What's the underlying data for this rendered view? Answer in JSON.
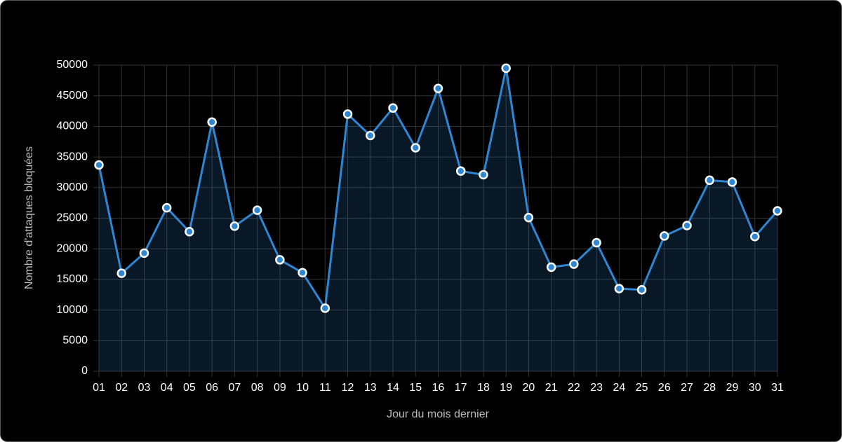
{
  "chart_data": {
    "type": "line",
    "x_label": "Jour du mois dernier",
    "y_label": "Nombre d'attaques bloquées",
    "categories": [
      "01",
      "02",
      "03",
      "04",
      "05",
      "06",
      "07",
      "08",
      "09",
      "10",
      "11",
      "12",
      "13",
      "14",
      "15",
      "16",
      "17",
      "18",
      "19",
      "20",
      "21",
      "22",
      "23",
      "24",
      "25",
      "26",
      "27",
      "28",
      "29",
      "30",
      "31"
    ],
    "series": [
      {
        "name": "Attaques bloquées",
        "color": "#2f86d2",
        "values": [
          33700,
          16000,
          19300,
          26700,
          22800,
          40700,
          23700,
          26300,
          18200,
          16100,
          10300,
          42000,
          38500,
          43000,
          36500,
          46200,
          32700,
          32100,
          49500,
          25100,
          17000,
          17500,
          21000,
          13500,
          13300,
          22100,
          23800,
          31200,
          30900,
          22000,
          26200
        ]
      }
    ],
    "ylim": [
      0,
      50000
    ],
    "yticks": [
      0,
      5000,
      10000,
      15000,
      20000,
      25000,
      30000,
      35000,
      40000,
      45000,
      50000
    ],
    "grid": true,
    "fill_area": true
  }
}
